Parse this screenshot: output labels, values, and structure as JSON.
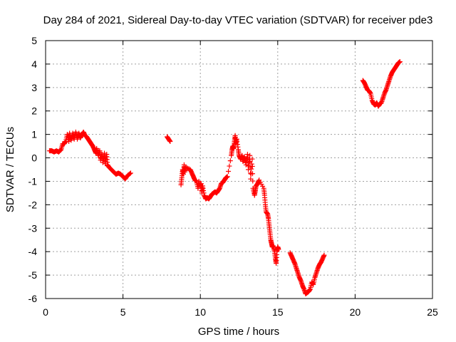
{
  "chart_data": {
    "type": "scatter",
    "title": "Day 284 of 2021, Sidereal Day-to-day VTEC variation (SDTVAR) for receiver pde3",
    "xlabel": "GPS time / hours",
    "ylabel": "SDTVAR / TECUs",
    "xlim": [
      0,
      25
    ],
    "ylim": [
      -6,
      5
    ],
    "xticks": [
      "0",
      "5",
      "10",
      "15",
      "20",
      "25"
    ],
    "yticks": [
      "-6",
      "-5",
      "-4",
      "-3",
      "-2",
      "-1",
      "0",
      "1",
      "2",
      "3",
      "4",
      "5"
    ],
    "grid": true,
    "marker": "+",
    "color": "#ff0000",
    "series": [
      {
        "name": "pde3",
        "points": [
          [
            0.25,
            0.3
          ],
          [
            0.4,
            0.3
          ],
          [
            0.55,
            0.25
          ],
          [
            0.7,
            0.3
          ],
          [
            0.85,
            0.25
          ],
          [
            1.0,
            0.35
          ],
          [
            1.1,
            0.6
          ],
          [
            1.2,
            0.6
          ],
          [
            1.3,
            0.7
          ],
          [
            1.4,
            1.0
          ],
          [
            1.5,
            0.7
          ],
          [
            1.55,
            1.05
          ],
          [
            1.65,
            0.75
          ],
          [
            1.75,
            1.05
          ],
          [
            1.85,
            0.8
          ],
          [
            1.95,
            1.1
          ],
          [
            2.05,
            0.8
          ],
          [
            2.15,
            1.05
          ],
          [
            2.25,
            0.85
          ],
          [
            2.35,
            1.0
          ],
          [
            2.45,
            1.1
          ],
          [
            2.55,
            0.95
          ],
          [
            2.65,
            0.9
          ],
          [
            2.75,
            0.8
          ],
          [
            2.85,
            0.7
          ],
          [
            2.95,
            0.6
          ],
          [
            3.05,
            0.5
          ],
          [
            3.15,
            0.35
          ],
          [
            3.25,
            0.2
          ],
          [
            3.3,
            0.4
          ],
          [
            3.4,
            0.1
          ],
          [
            3.5,
            0.3
          ],
          [
            3.55,
            -0.1
          ],
          [
            3.65,
            0.15
          ],
          [
            3.7,
            -0.2
          ],
          [
            3.8,
            0.2
          ],
          [
            3.85,
            -0.25
          ],
          [
            3.95,
            0.15
          ],
          [
            4.0,
            -0.3
          ],
          [
            4.1,
            -0.4
          ],
          [
            4.25,
            -0.5
          ],
          [
            4.4,
            -0.6
          ],
          [
            4.55,
            -0.7
          ],
          [
            4.7,
            -0.65
          ],
          [
            4.85,
            -0.7
          ],
          [
            5.0,
            -0.8
          ],
          [
            5.15,
            -0.9
          ],
          [
            5.3,
            -0.75
          ],
          [
            5.5,
            -0.65
          ],
          [
            7.85,
            0.9
          ],
          [
            7.95,
            0.8
          ],
          [
            8.05,
            0.7
          ],
          [
            8.75,
            -1.15
          ],
          [
            8.8,
            -0.85
          ],
          [
            8.85,
            -0.5
          ],
          [
            8.9,
            -0.7
          ],
          [
            8.95,
            -0.3
          ],
          [
            9.0,
            -0.6
          ],
          [
            9.05,
            -0.4
          ],
          [
            9.35,
            -0.5
          ],
          [
            9.45,
            -0.65
          ],
          [
            9.55,
            -0.8
          ],
          [
            9.65,
            -0.95
          ],
          [
            9.75,
            -1.0
          ],
          [
            9.85,
            -1.3
          ],
          [
            9.9,
            -1.0
          ],
          [
            9.95,
            -1.2
          ],
          [
            10.05,
            -1.1
          ],
          [
            10.1,
            -1.5
          ],
          [
            10.15,
            -1.2
          ],
          [
            10.25,
            -1.6
          ],
          [
            10.35,
            -1.75
          ],
          [
            10.45,
            -1.7
          ],
          [
            10.55,
            -1.75
          ],
          [
            10.65,
            -1.65
          ],
          [
            10.75,
            -1.55
          ],
          [
            10.85,
            -1.5
          ],
          [
            10.95,
            -1.45
          ],
          [
            11.05,
            -1.5
          ],
          [
            11.15,
            -1.4
          ],
          [
            11.25,
            -1.3
          ],
          [
            11.35,
            -1.1
          ],
          [
            11.45,
            -1.05
          ],
          [
            11.55,
            -0.95
          ],
          [
            11.65,
            -0.85
          ],
          [
            11.75,
            -0.8
          ],
          [
            12.0,
            0.1
          ],
          [
            12.05,
            0.35
          ],
          [
            12.1,
            0.5
          ],
          [
            12.15,
            0.4
          ],
          [
            12.2,
            0.7
          ],
          [
            12.25,
            0.95
          ],
          [
            12.3,
            0.6
          ],
          [
            12.35,
            0.8
          ],
          [
            12.45,
            0.35
          ],
          [
            12.5,
            0.1
          ],
          [
            12.6,
            -0.05
          ],
          [
            12.7,
            0.1
          ],
          [
            12.75,
            -0.15
          ],
          [
            12.85,
            0.05
          ],
          [
            12.95,
            -0.3
          ],
          [
            13.05,
            0.15
          ],
          [
            13.1,
            -0.5
          ],
          [
            13.2,
            0.1
          ],
          [
            13.25,
            -0.9
          ],
          [
            13.35,
            -0.05
          ],
          [
            13.4,
            -1.3
          ],
          [
            13.5,
            -1.6
          ],
          [
            13.55,
            -1.4
          ],
          [
            13.6,
            -1.2
          ],
          [
            13.7,
            -1.1
          ],
          [
            13.8,
            -0.95
          ],
          [
            14.1,
            -1.3
          ],
          [
            14.15,
            -1.6
          ],
          [
            14.2,
            -2.0
          ],
          [
            14.25,
            -2.3
          ],
          [
            14.35,
            -2.4
          ],
          [
            14.4,
            -2.6
          ],
          [
            14.45,
            -2.9
          ],
          [
            14.5,
            -3.2
          ],
          [
            14.55,
            -3.5
          ],
          [
            14.6,
            -3.65
          ],
          [
            14.65,
            -3.8
          ],
          [
            14.7,
            -3.75
          ],
          [
            14.8,
            -4.0
          ],
          [
            14.85,
            -4.3
          ],
          [
            14.9,
            -4.5
          ],
          [
            14.95,
            -4.0
          ],
          [
            15.0,
            -3.8
          ],
          [
            15.05,
            -3.9
          ],
          [
            15.8,
            -4.05
          ],
          [
            15.9,
            -4.2
          ],
          [
            16.0,
            -4.35
          ],
          [
            16.1,
            -4.5
          ],
          [
            16.2,
            -4.7
          ],
          [
            16.3,
            -4.9
          ],
          [
            16.4,
            -5.1
          ],
          [
            16.5,
            -5.25
          ],
          [
            16.6,
            -5.45
          ],
          [
            16.7,
            -5.6
          ],
          [
            16.8,
            -5.8
          ],
          [
            16.9,
            -5.75
          ],
          [
            17.0,
            -5.7
          ],
          [
            17.1,
            -5.6
          ],
          [
            17.2,
            -5.3
          ],
          [
            17.3,
            -5.4
          ],
          [
            17.4,
            -5.1
          ],
          [
            17.5,
            -4.9
          ],
          [
            17.6,
            -4.7
          ],
          [
            17.7,
            -4.55
          ],
          [
            17.8,
            -4.45
          ],
          [
            17.9,
            -4.3
          ],
          [
            18.0,
            -4.15
          ],
          [
            20.5,
            3.3
          ],
          [
            20.6,
            3.2
          ],
          [
            20.7,
            3.05
          ],
          [
            20.8,
            2.9
          ],
          [
            20.9,
            2.85
          ],
          [
            21.0,
            2.75
          ],
          [
            21.1,
            2.45
          ],
          [
            21.2,
            2.3
          ],
          [
            21.3,
            2.25
          ],
          [
            21.4,
            2.35
          ],
          [
            21.5,
            2.2
          ],
          [
            21.6,
            2.3
          ],
          [
            21.7,
            2.35
          ],
          [
            21.8,
            2.55
          ],
          [
            21.9,
            2.75
          ],
          [
            22.0,
            2.9
          ],
          [
            22.1,
            3.1
          ],
          [
            22.2,
            3.3
          ],
          [
            22.3,
            3.5
          ],
          [
            22.4,
            3.65
          ],
          [
            22.5,
            3.75
          ],
          [
            22.6,
            3.85
          ],
          [
            22.7,
            3.95
          ],
          [
            22.8,
            4.05
          ],
          [
            22.9,
            4.1
          ]
        ]
      }
    ]
  }
}
